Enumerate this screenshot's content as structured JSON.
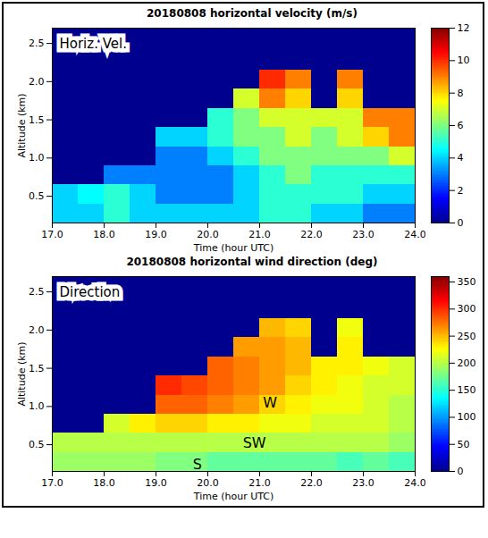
{
  "chart_data": [
    {
      "type": "heatmap",
      "title": "20180808 horizontal velocity (m/s)",
      "x_label": "Time (hour UTC)",
      "y_label": "Altitude (km)",
      "xlim": [
        17,
        24
      ],
      "xticks": [
        17,
        18,
        19,
        20,
        21,
        22,
        23,
        24
      ],
      "ylim": [
        0.15,
        2.7
      ],
      "yticks": [
        0.5,
        1,
        1.5,
        2,
        2.5
      ],
      "x_edges": [
        17,
        17.5,
        18,
        18.5,
        19,
        19.5,
        20,
        20.5,
        21,
        21.5,
        22,
        22.5,
        23,
        23.5,
        24
      ],
      "y_edges": [
        0.15,
        0.4,
        0.65,
        0.9,
        1.15,
        1.4,
        1.65,
        1.9,
        2.15,
        2.4,
        2.7
      ],
      "values": [
        [
          4,
          4,
          5,
          4,
          4,
          4,
          4,
          4,
          5,
          5,
          4,
          4,
          3,
          3
        ],
        [
          4,
          4.5,
          5,
          4,
          3,
          3,
          3,
          4,
          5,
          5,
          5,
          5,
          4,
          4
        ],
        [
          0,
          0,
          3,
          3,
          3,
          3,
          3,
          4,
          5,
          6,
          5,
          5,
          5,
          5
        ],
        [
          0,
          0,
          0,
          0,
          3,
          3,
          4,
          5,
          6,
          6,
          6,
          6,
          6,
          7
        ],
        [
          0,
          0,
          0,
          0,
          4,
          4,
          5,
          6,
          6,
          7,
          6,
          7,
          8,
          9
        ],
        [
          0,
          0,
          0,
          0,
          0,
          0,
          5,
          6,
          7,
          7,
          7,
          7,
          9,
          9
        ],
        [
          0,
          0,
          0,
          0,
          0,
          0,
          0,
          7,
          9,
          8,
          0,
          8,
          0,
          0
        ],
        [
          0,
          0,
          0,
          0,
          0,
          0,
          0,
          0,
          10,
          9,
          0,
          9,
          0,
          0
        ],
        [
          0,
          0,
          0,
          0,
          0,
          0,
          0,
          0,
          0,
          0,
          0,
          0,
          0,
          0
        ],
        [
          0,
          0,
          0,
          0,
          0,
          0,
          0,
          0,
          0,
          0,
          0,
          0,
          0,
          0
        ]
      ],
      "colorbar": {
        "range": [
          0,
          12
        ],
        "ticks": [
          0,
          2,
          4,
          6,
          8,
          10,
          12
        ]
      },
      "annotations": [
        {
          "text": "Horiz. Vel."
        }
      ]
    },
    {
      "type": "heatmap",
      "title": "20180808 horizontal wind direction (deg)",
      "x_label": "Time (hour UTC)",
      "y_label": "Altitude (km)",
      "xlim": [
        17,
        24
      ],
      "xticks": [
        17,
        18,
        19,
        20,
        21,
        22,
        23,
        24
      ],
      "ylim": [
        0.15,
        2.7
      ],
      "yticks": [
        0.5,
        1,
        1.5,
        2,
        2.5
      ],
      "x_edges": [
        17,
        17.5,
        18,
        18.5,
        19,
        19.5,
        20,
        20.5,
        21,
        21.5,
        22,
        22.5,
        23,
        23.5,
        24
      ],
      "y_edges": [
        0.15,
        0.4,
        0.65,
        0.9,
        1.15,
        1.4,
        1.65,
        1.9,
        2.15,
        2.4,
        2.7
      ],
      "values": [
        [
          190,
          190,
          190,
          190,
          180,
          180,
          170,
          170,
          170,
          170,
          170,
          160,
          170,
          160
        ],
        [
          200,
          200,
          200,
          200,
          200,
          200,
          200,
          200,
          200,
          200,
          200,
          200,
          200,
          190
        ],
        [
          0,
          0,
          210,
          230,
          240,
          240,
          230,
          230,
          220,
          220,
          210,
          210,
          210,
          200
        ],
        [
          0,
          0,
          0,
          0,
          280,
          280,
          270,
          260,
          240,
          230,
          220,
          220,
          210,
          200
        ],
        [
          0,
          0,
          0,
          0,
          300,
          290,
          280,
          270,
          260,
          240,
          230,
          220,
          210,
          210
        ],
        [
          0,
          0,
          0,
          0,
          0,
          0,
          280,
          270,
          260,
          250,
          230,
          230,
          220,
          210
        ],
        [
          0,
          0,
          0,
          0,
          0,
          0,
          0,
          260,
          260,
          250,
          0,
          230,
          0,
          0
        ],
        [
          0,
          0,
          0,
          0,
          0,
          0,
          0,
          0,
          250,
          240,
          0,
          220,
          0,
          0
        ],
        [
          0,
          0,
          0,
          0,
          0,
          0,
          0,
          0,
          0,
          0,
          0,
          0,
          0,
          0
        ],
        [
          0,
          0,
          0,
          0,
          0,
          0,
          0,
          0,
          0,
          0,
          0,
          0,
          0,
          0
        ]
      ],
      "colorbar": {
        "range": [
          0,
          360
        ],
        "ticks": [
          0,
          50,
          100,
          150,
          200,
          250,
          300,
          350
        ]
      },
      "annotations": [
        {
          "text": "Direction"
        },
        {
          "text": "W",
          "x": 21.2,
          "y": 1.05
        },
        {
          "text": "SW",
          "x": 20.9,
          "y": 0.52
        },
        {
          "text": "S",
          "x": 19.8,
          "y": 0.24
        }
      ]
    }
  ]
}
